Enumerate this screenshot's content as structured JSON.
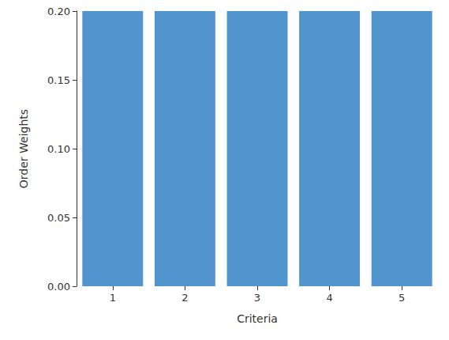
{
  "chart_data": {
    "type": "bar",
    "categories": [
      "1",
      "2",
      "3",
      "4",
      "5"
    ],
    "values": [
      0.2,
      0.2,
      0.2,
      0.2,
      0.2
    ],
    "color": "#5294ce",
    "xlabel": "Criteria",
    "ylabel": "Order Weights",
    "ylim": [
      0,
      0.2
    ],
    "yticks": [
      {
        "value": 0,
        "label": "0.00"
      },
      0.05,
      {
        "value": 0.1,
        "label": "0.10"
      },
      0.15,
      {
        "value": 0.2,
        "label": "0.20"
      }
    ],
    "grid": false
  }
}
